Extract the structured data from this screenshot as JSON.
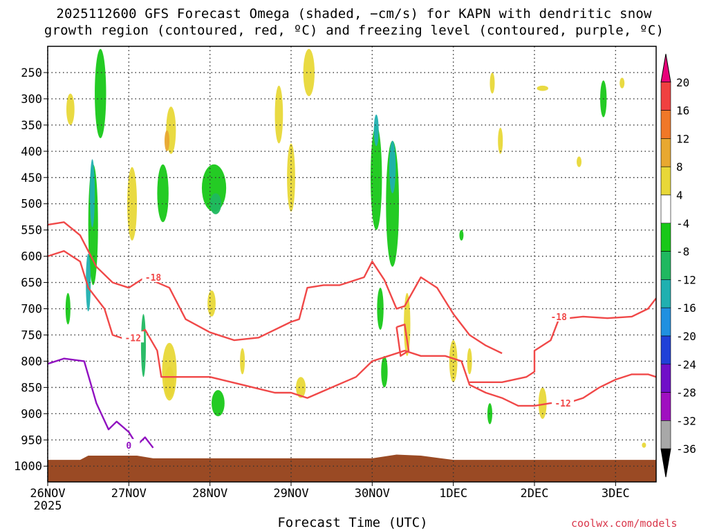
{
  "title": {
    "line1": "2025112600 GFS Forecast Omega (shaded, −cm/s) for KAPN with dendritic snow",
    "line2": "growth region (contoured, red, ºC) and freezing level (contoured, purple, ºC)"
  },
  "credit": "coolwx.com/models",
  "chart_data": {
    "type": "contour",
    "xlabel": "Forecast Time (UTC)",
    "x_ticks": [
      "26NOV",
      "27NOV",
      "28NOV",
      "29NOV",
      "30NOV",
      "1DEC",
      "2DEC",
      "3DEC"
    ],
    "x_year": "2025",
    "x_range_days": [
      0,
      7.5
    ],
    "y_ticks": [
      250,
      300,
      350,
      400,
      450,
      500,
      550,
      600,
      650,
      700,
      750,
      800,
      850,
      900,
      950,
      1000
    ],
    "y_range_hpa": [
      200,
      1030
    ],
    "y_reversed": true,
    "grid": true,
    "colorbar": {
      "labels": [
        "20",
        "16",
        "12",
        "8",
        "4",
        "-4",
        "-8",
        "-12",
        "-16",
        "-20",
        "-24",
        "-28",
        "-32",
        "-36"
      ],
      "colors": [
        "#e8007a",
        "#f04040",
        "#f07828",
        "#e8a830",
        "#e8d838",
        "#ffffff",
        "#18c818",
        "#20b860",
        "#20b0b0",
        "#2090e0",
        "#2040d8",
        "#7010c8",
        "#a010c0",
        "#a8a8a8",
        "#000000"
      ]
    },
    "omega_blobs": [
      {
        "t": 0.65,
        "p": 290,
        "dt": 0.07,
        "dp": 170,
        "c": "#18c818"
      },
      {
        "t": 0.56,
        "p": 540,
        "dt": 0.06,
        "dp": 230,
        "c": "#18c818"
      },
      {
        "t": 0.55,
        "p": 480,
        "dt": 0.03,
        "dp": 130,
        "c": "#20b0b0"
      },
      {
        "t": 0.5,
        "p": 650,
        "dt": 0.03,
        "dp": 110,
        "c": "#20b0b0"
      },
      {
        "t": 0.28,
        "p": 320,
        "dt": 0.05,
        "dp": 60,
        "c": "#e8d838"
      },
      {
        "t": 0.25,
        "p": 700,
        "dt": 0.03,
        "dp": 60,
        "c": "#18c818"
      },
      {
        "t": 1.42,
        "p": 480,
        "dt": 0.07,
        "dp": 110,
        "c": "#18c818"
      },
      {
        "t": 1.52,
        "p": 360,
        "dt": 0.06,
        "dp": 90,
        "c": "#e8d838"
      },
      {
        "t": 1.47,
        "p": 380,
        "dt": 0.03,
        "dp": 40,
        "c": "#e8a830"
      },
      {
        "t": 1.04,
        "p": 500,
        "dt": 0.06,
        "dp": 140,
        "c": "#e8d838"
      },
      {
        "t": 1.18,
        "p": 770,
        "dt": 0.03,
        "dp": 120,
        "c": "#20b860"
      },
      {
        "t": 1.5,
        "p": 840,
        "dt": 0.06,
        "dp": 60,
        "c": "#e8a830"
      },
      {
        "t": 1.5,
        "p": 820,
        "dt": 0.09,
        "dp": 110,
        "c": "#e8d838"
      },
      {
        "t": 2.05,
        "p": 470,
        "dt": 0.15,
        "dp": 90,
        "c": "#18c818"
      },
      {
        "t": 2.07,
        "p": 500,
        "dt": 0.07,
        "dp": 40,
        "c": "#20b860"
      },
      {
        "t": 2.1,
        "p": 880,
        "dt": 0.08,
        "dp": 50,
        "c": "#18c818"
      },
      {
        "t": 2.02,
        "p": 690,
        "dt": 0.05,
        "dp": 50,
        "c": "#e8d838"
      },
      {
        "t": 2.85,
        "p": 330,
        "dt": 0.05,
        "dp": 110,
        "c": "#e8d838"
      },
      {
        "t": 3.0,
        "p": 450,
        "dt": 0.05,
        "dp": 130,
        "c": "#e8d838"
      },
      {
        "t": 3.22,
        "p": 250,
        "dt": 0.07,
        "dp": 90,
        "c": "#e8d838"
      },
      {
        "t": 3.12,
        "p": 850,
        "dt": 0.06,
        "dp": 40,
        "c": "#e8d838"
      },
      {
        "t": 2.4,
        "p": 800,
        "dt": 0.03,
        "dp": 50,
        "c": "#e8d838"
      },
      {
        "t": 4.05,
        "p": 450,
        "dt": 0.07,
        "dp": 200,
        "c": "#18c818"
      },
      {
        "t": 4.25,
        "p": 500,
        "dt": 0.08,
        "dp": 240,
        "c": "#18c818"
      },
      {
        "t": 4.25,
        "p": 430,
        "dt": 0.04,
        "dp": 100,
        "c": "#20b0b0"
      },
      {
        "t": 4.05,
        "p": 360,
        "dt": 0.03,
        "dp": 60,
        "c": "#20b0b0"
      },
      {
        "t": 4.1,
        "p": 700,
        "dt": 0.04,
        "dp": 80,
        "c": "#18c818"
      },
      {
        "t": 4.43,
        "p": 730,
        "dt": 0.04,
        "dp": 120,
        "c": "#e8d838"
      },
      {
        "t": 4.15,
        "p": 820,
        "dt": 0.04,
        "dp": 60,
        "c": "#18c818"
      },
      {
        "t": 5.0,
        "p": 800,
        "dt": 0.05,
        "dp": 80,
        "c": "#e8d838"
      },
      {
        "t": 5.2,
        "p": 800,
        "dt": 0.03,
        "dp": 50,
        "c": "#e8d838"
      },
      {
        "t": 5.1,
        "p": 560,
        "dt": 0.02,
        "dp": 20,
        "c": "#18c818"
      },
      {
        "t": 5.45,
        "p": 900,
        "dt": 0.03,
        "dp": 40,
        "c": "#18c818"
      },
      {
        "t": 5.48,
        "p": 270,
        "dt": 0.03,
        "dp": 40,
        "c": "#e8d838"
      },
      {
        "t": 5.58,
        "p": 380,
        "dt": 0.03,
        "dp": 50,
        "c": "#e8d838"
      },
      {
        "t": 6.1,
        "p": 880,
        "dt": 0.05,
        "dp": 60,
        "c": "#e8d838"
      },
      {
        "t": 6.1,
        "p": 280,
        "dt": 0.07,
        "dp": 10,
        "c": "#e8d838"
      },
      {
        "t": 6.55,
        "p": 420,
        "dt": 0.03,
        "dp": 20,
        "c": "#e8d838"
      },
      {
        "t": 6.85,
        "p": 300,
        "dt": 0.04,
        "dp": 70,
        "c": "#18c818"
      },
      {
        "t": 7.08,
        "p": 270,
        "dt": 0.03,
        "dp": 20,
        "c": "#e8d838"
      },
      {
        "t": 7.35,
        "p": 960,
        "dt": 0.02,
        "dp": 10,
        "c": "#e8d838"
      }
    ],
    "contours": [
      {
        "label": "-18",
        "color": "#f04848",
        "label_at": [
          1.3,
          640
        ],
        "points": [
          [
            0,
            540
          ],
          [
            0.2,
            535
          ],
          [
            0.4,
            560
          ],
          [
            0.6,
            620
          ],
          [
            0.8,
            650
          ],
          [
            1.0,
            660
          ],
          [
            1.2,
            640
          ],
          [
            1.5,
            660
          ],
          [
            1.7,
            720
          ],
          [
            2.0,
            745
          ],
          [
            2.3,
            760
          ],
          [
            2.6,
            755
          ],
          [
            3.0,
            725
          ],
          [
            3.1,
            720
          ],
          [
            3.2,
            660
          ],
          [
            3.4,
            655
          ],
          [
            3.6,
            655
          ],
          [
            3.9,
            640
          ],
          [
            4.0,
            610
          ],
          [
            4.15,
            645
          ],
          [
            4.3,
            700
          ],
          [
            4.4,
            695
          ],
          [
            4.6,
            640
          ],
          [
            4.8,
            660
          ],
          [
            5.0,
            710
          ],
          [
            5.2,
            750
          ],
          [
            5.4,
            770
          ],
          [
            5.6,
            785
          ]
        ]
      },
      {
        "label": "-12",
        "color": "#f04848",
        "label_at": [
          1.05,
          755
        ],
        "points": [
          [
            0,
            600
          ],
          [
            0.2,
            590
          ],
          [
            0.4,
            610
          ],
          [
            0.5,
            660
          ],
          [
            0.7,
            700
          ],
          [
            0.8,
            750
          ],
          [
            1.0,
            760
          ],
          [
            1.2,
            740
          ],
          [
            1.35,
            780
          ],
          [
            1.4,
            830
          ],
          [
            1.6,
            830
          ],
          [
            2.0,
            830
          ],
          [
            2.4,
            845
          ],
          [
            2.8,
            860
          ],
          [
            3.0,
            860
          ],
          [
            3.2,
            870
          ],
          [
            3.5,
            850
          ],
          [
            3.8,
            830
          ],
          [
            4.0,
            800
          ],
          [
            4.2,
            790
          ],
          [
            4.4,
            780
          ],
          [
            4.6,
            790
          ],
          [
            4.9,
            790
          ],
          [
            5.1,
            800
          ],
          [
            5.2,
            845
          ],
          [
            5.4,
            860
          ],
          [
            5.6,
            870
          ],
          [
            5.8,
            885
          ],
          [
            6.0,
            885
          ],
          [
            6.2,
            880
          ]
        ]
      },
      {
        "label": "-12",
        "color": "#f04848",
        "label_at": [
          6.35,
          880
        ],
        "points": [
          [
            6.2,
            880
          ],
          [
            6.4,
            880
          ],
          [
            6.6,
            870
          ],
          [
            6.8,
            850
          ],
          [
            7.0,
            835
          ],
          [
            7.2,
            825
          ],
          [
            7.4,
            825
          ],
          [
            7.5,
            830
          ]
        ]
      },
      {
        "label": "-18",
        "color": "#f04848",
        "label_at": [
          6.3,
          715
        ],
        "points": [
          [
            5.2,
            840
          ],
          [
            5.6,
            840
          ],
          [
            5.9,
            830
          ],
          [
            6.0,
            820
          ],
          [
            6.0,
            780
          ],
          [
            6.2,
            760
          ],
          [
            6.3,
            720
          ],
          [
            6.6,
            715
          ],
          [
            6.9,
            718
          ],
          [
            7.2,
            715
          ],
          [
            7.4,
            700
          ],
          [
            7.5,
            680
          ]
        ]
      },
      {
        "label": "",
        "color": "#f04848",
        "label_at": null,
        "points": [
          [
            4.3,
            735
          ],
          [
            4.4,
            730
          ],
          [
            4.45,
            780
          ],
          [
            4.35,
            790
          ],
          [
            4.3,
            735
          ]
        ]
      },
      {
        "label": "0",
        "color": "#9010c0",
        "label_at": [
          1.0,
          960
        ],
        "points": [
          [
            0,
            805
          ],
          [
            0.2,
            795
          ],
          [
            0.45,
            800
          ],
          [
            0.6,
            880
          ],
          [
            0.75,
            930
          ],
          [
            0.85,
            915
          ],
          [
            1.0,
            935
          ],
          [
            1.1,
            960
          ],
          [
            1.2,
            945
          ],
          [
            1.3,
            965
          ]
        ]
      }
    ]
  }
}
